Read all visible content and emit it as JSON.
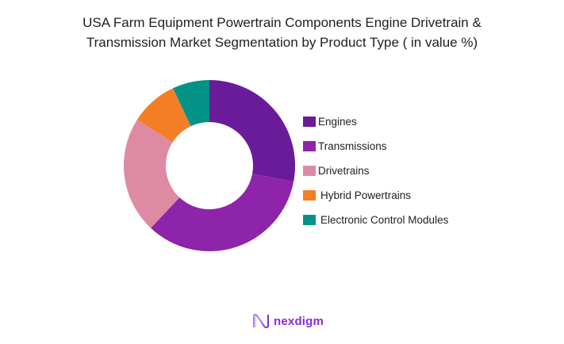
{
  "title_lines": [
    "USA Farm Equipment Powertrain Components Engine Drivetrain &",
    "Transmission Market Segmentation by Product Type ( in value %)"
  ],
  "chart_data": {
    "type": "pie",
    "subtype": "donut",
    "title": "USA Farm Equipment Powertrain Components Engine Drivetrain & Transmission Market Segmentation by Product Type ( in value %)",
    "categories": [
      "Engines",
      "Transmissions",
      "Drivetrains",
      "Hybrid Powertrains",
      "Electronic Control Modules"
    ],
    "values": [
      28,
      34,
      22,
      9,
      7
    ],
    "colors": [
      "#6a1b9a",
      "#8e24aa",
      "#de8aa3",
      "#f47e25",
      "#019486"
    ],
    "start_angle_deg": 0,
    "direction": "clockwise",
    "legend_position": "right",
    "data_labels": false
  },
  "legend": {
    "items": [
      {
        "label": "Engines",
        "color": "#6a1b9a"
      },
      {
        "label": "Transmissions",
        "color": "#8e24aa"
      },
      {
        "label": "Drivetrains",
        "color": "#de8aa3"
      },
      {
        "label": "Hybrid Powertrains",
        "color": "#f47e25"
      },
      {
        "label": "Electronic Control Modules",
        "color": "#019486"
      }
    ]
  },
  "footer": {
    "logo_text": "nexdigm",
    "logo_color": "#8a2be2"
  }
}
